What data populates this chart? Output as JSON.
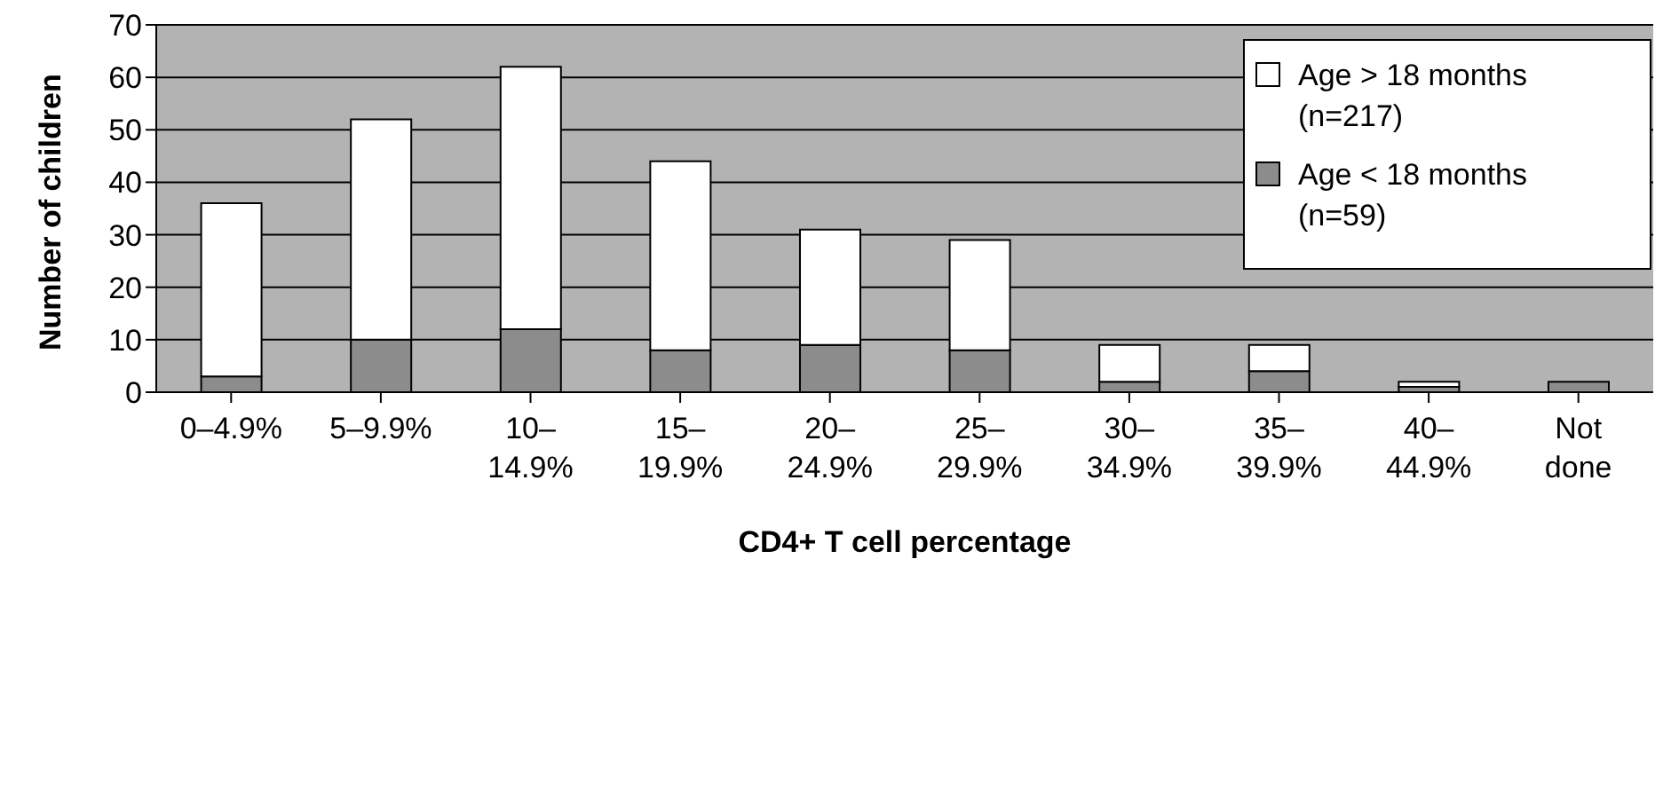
{
  "chart_data": {
    "type": "bar",
    "stacked": true,
    "xlabel": "CD4+ T cell percentage",
    "ylabel": "Number of children",
    "categories": [
      "0–4.9%",
      "5–9.9%",
      "10–14.9%",
      "15–19.9%",
      "20–24.9%",
      "25–29.9%",
      "30–34.9%",
      "35–39.9%",
      "40–44.9%",
      "Not done"
    ],
    "series": [
      {
        "name": "Age < 18 months (n=59)",
        "color": "#8c8c8c",
        "values": [
          3,
          10,
          12,
          8,
          9,
          8,
          2,
          4,
          1,
          2
        ]
      },
      {
        "name": "Age > 18 months (n=217)",
        "color": "#ffffff",
        "values": [
          33,
          42,
          50,
          36,
          22,
          21,
          7,
          5,
          1,
          0
        ]
      }
    ],
    "ylim": [
      0,
      70
    ],
    "yticks": [
      0,
      10,
      20,
      30,
      40,
      50,
      60,
      70
    ],
    "grid": "y",
    "legend": "top right"
  }
}
